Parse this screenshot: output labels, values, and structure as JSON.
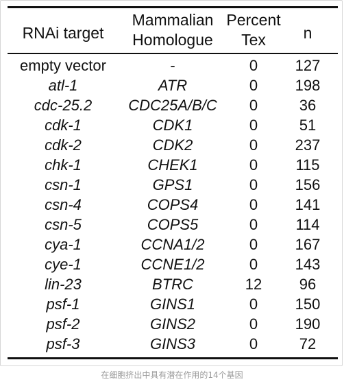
{
  "table": {
    "headers": {
      "col1": "RNAi target",
      "col2_line1": "Mammalian",
      "col2_line2": "Homologue",
      "col3_line1": "Percent",
      "col3_line2": "Tex",
      "col4": "n"
    },
    "rows": [
      {
        "target": "empty vector",
        "homologue": "-",
        "percent_tex": "0",
        "n": "127"
      },
      {
        "target": "atl-1",
        "homologue": "ATR",
        "percent_tex": "0",
        "n": "198"
      },
      {
        "target": "cdc-25.2",
        "homologue": "CDC25A/B/C",
        "percent_tex": "0",
        "n": "36"
      },
      {
        "target": "cdk-1",
        "homologue": "CDK1",
        "percent_tex": "0",
        "n": "51"
      },
      {
        "target": "cdk-2",
        "homologue": "CDK2",
        "percent_tex": "0",
        "n": "237"
      },
      {
        "target": "chk-1",
        "homologue": "CHEK1",
        "percent_tex": "0",
        "n": "115"
      },
      {
        "target": "csn-1",
        "homologue": "GPS1",
        "percent_tex": "0",
        "n": "156"
      },
      {
        "target": "csn-4",
        "homologue": "COPS4",
        "percent_tex": "0",
        "n": "141"
      },
      {
        "target": "csn-5",
        "homologue": "COPS5",
        "percent_tex": "0",
        "n": "114"
      },
      {
        "target": "cya-1",
        "homologue": "CCNA1/2",
        "percent_tex": "0",
        "n": "167"
      },
      {
        "target": "cye-1",
        "homologue": "CCNE1/2",
        "percent_tex": "0",
        "n": "143"
      },
      {
        "target": "lin-23",
        "homologue": "BTRC",
        "percent_tex": "12",
        "n": "96"
      },
      {
        "target": "psf-1",
        "homologue": "GINS1",
        "percent_tex": "0",
        "n": "150"
      },
      {
        "target": "psf-2",
        "homologue": "GINS2",
        "percent_tex": "0",
        "n": "190"
      },
      {
        "target": "psf-3",
        "homologue": "GINS3",
        "percent_tex": "0",
        "n": "72"
      }
    ]
  },
  "caption": "在细胞挤出中具有潜在作用的14个基因"
}
